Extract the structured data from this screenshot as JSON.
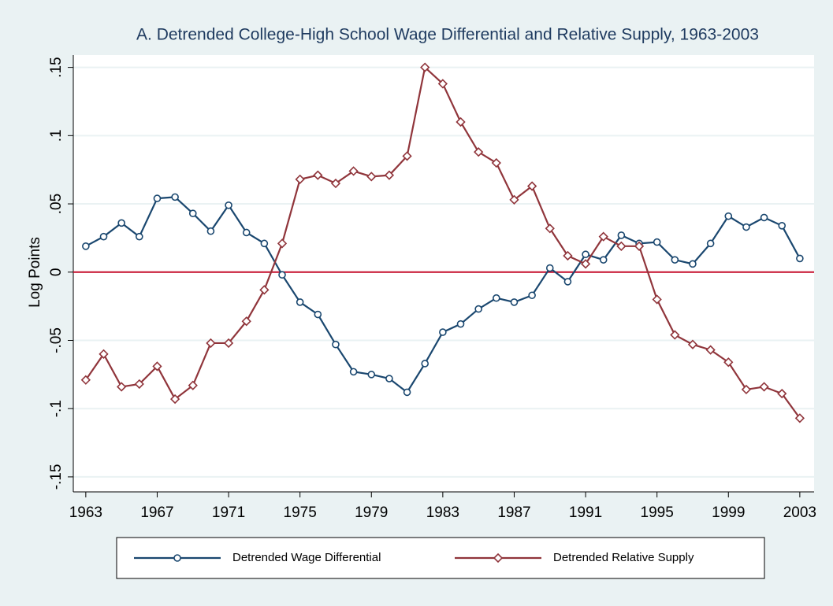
{
  "chart_data": {
    "type": "line",
    "title": "A. Detrended College-High School Wage Differential and Relative Supply, 1963-2003",
    "y_label": "Log Points",
    "x": [
      1963,
      1964,
      1965,
      1966,
      1967,
      1968,
      1969,
      1970,
      1971,
      1972,
      1973,
      1974,
      1975,
      1976,
      1977,
      1978,
      1979,
      1980,
      1981,
      1982,
      1983,
      1984,
      1985,
      1986,
      1987,
      1988,
      1989,
      1990,
      1991,
      1992,
      1993,
      1994,
      1995,
      1996,
      1997,
      1998,
      1999,
      2000,
      2001,
      2002,
      2003
    ],
    "series": [
      {
        "name": "Detrended Wage Differential",
        "color": "#1a476f",
        "marker": "circle",
        "values": [
          0.019,
          0.026,
          0.036,
          0.026,
          0.054,
          0.055,
          0.043,
          0.03,
          0.049,
          0.029,
          0.021,
          -0.002,
          -0.022,
          -0.031,
          -0.053,
          -0.073,
          -0.075,
          -0.078,
          -0.088,
          -0.067,
          -0.044,
          -0.038,
          -0.027,
          -0.019,
          -0.022,
          -0.017,
          0.003,
          -0.007,
          0.013,
          0.009,
          0.027,
          0.021,
          0.022,
          0.009,
          0.006,
          0.021,
          0.041,
          0.033,
          0.04,
          0.034,
          0.01
        ]
      },
      {
        "name": "Detrended Relative Supply",
        "color": "#90353b",
        "marker": "diamond",
        "values": [
          -0.079,
          -0.06,
          -0.084,
          -0.082,
          -0.069,
          -0.093,
          -0.083,
          -0.052,
          -0.052,
          -0.036,
          -0.013,
          0.021,
          0.068,
          0.071,
          0.065,
          0.074,
          0.07,
          0.071,
          0.085,
          0.15,
          0.138,
          0.11,
          0.088,
          0.08,
          0.053,
          0.063,
          0.032,
          0.012,
          0.006,
          0.026,
          0.019,
          0.019,
          -0.02,
          -0.046,
          -0.053,
          -0.057,
          -0.066,
          -0.086,
          -0.084,
          -0.089,
          -0.107
        ]
      }
    ],
    "xlim": [
      1962.3,
      2003.8
    ],
    "xticks": [
      1963,
      1967,
      1971,
      1975,
      1979,
      1983,
      1987,
      1991,
      1995,
      1999,
      2003
    ],
    "ylim": [
      -0.161,
      0.159
    ],
    "yticks": [
      {
        "value": -0.15,
        "label": "-.15"
      },
      {
        "value": -0.1,
        "label": "-.1"
      },
      {
        "value": -0.05,
        "label": "-.05"
      },
      0,
      {
        "value": 0.05,
        "label": ".05"
      },
      {
        "value": 0.1,
        "label": ".1"
      },
      {
        "value": 0.15,
        "label": ".15"
      }
    ],
    "grid": true,
    "hline": {
      "value": 0,
      "color": "#c8102e"
    },
    "legend": "bottom"
  }
}
